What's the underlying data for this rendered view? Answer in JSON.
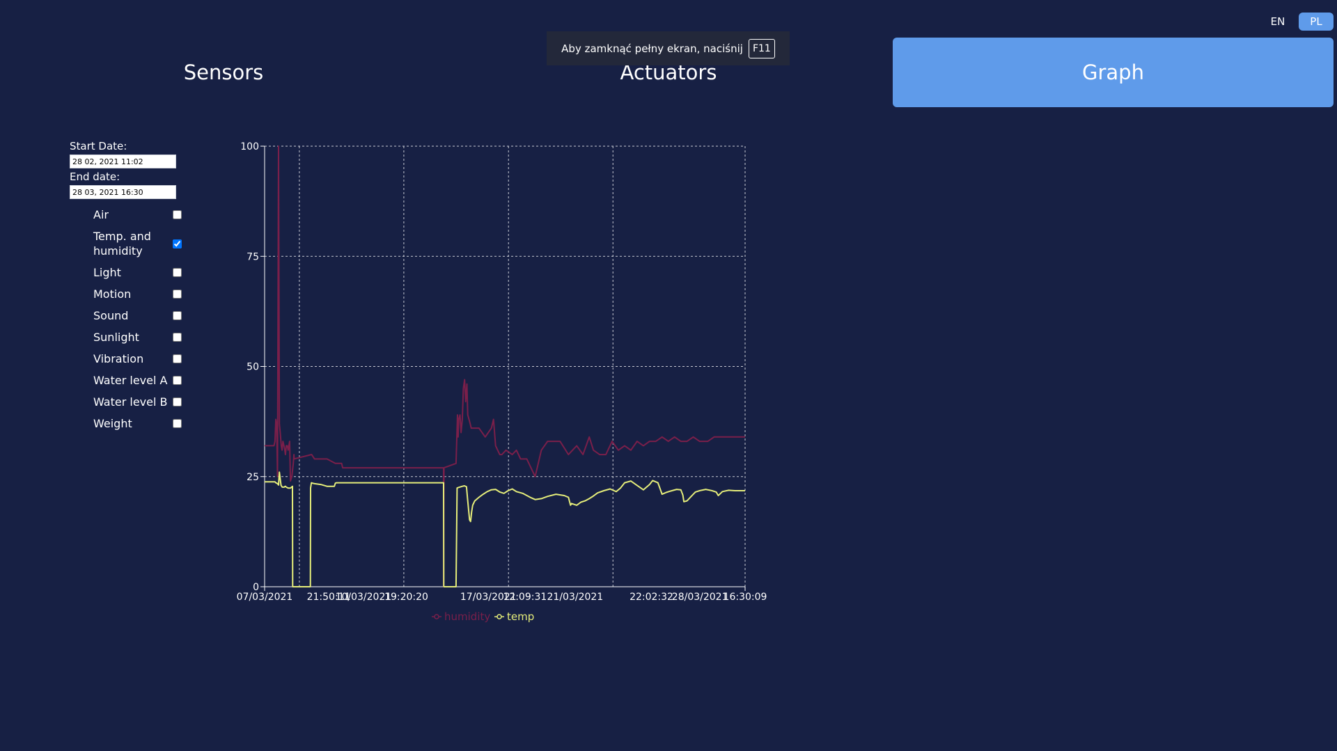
{
  "language": {
    "en_label": "EN",
    "pl_label": "PL",
    "selected": "PL"
  },
  "nav": {
    "sensors": "Sensors",
    "actuators": "Actuators",
    "graph": "Graph",
    "active": "Graph"
  },
  "fullscreen_notice": {
    "text": "Aby zamknąć pełny ekran, naciśnij",
    "key": "F11"
  },
  "filters": {
    "start_label": "Start Date:",
    "start_value": "28 02, 2021 11:02",
    "end_label": "End date:",
    "end_value": "28 03, 2021 16:30",
    "sensors": [
      {
        "label": "Air",
        "checked": false
      },
      {
        "label": "Temp. and humidity",
        "checked": true
      },
      {
        "label": "Light",
        "checked": false
      },
      {
        "label": "Motion",
        "checked": false
      },
      {
        "label": "Sound",
        "checked": false
      },
      {
        "label": "Sunlight",
        "checked": false
      },
      {
        "label": "Vibration",
        "checked": false
      },
      {
        "label": "Water level A",
        "checked": false
      },
      {
        "label": "Water level B",
        "checked": false
      },
      {
        "label": "Weight",
        "checked": false
      }
    ]
  },
  "chart_data": {
    "type": "line",
    "title": "",
    "xlabel": "",
    "ylabel": "",
    "ylim": [
      0,
      100
    ],
    "yticks": [
      0,
      25,
      50,
      75,
      100
    ],
    "x_range": [
      "07/03/2021",
      "28/03/2021 16:30:09"
    ],
    "xticks": [
      {
        "x": 0.0,
        "label": "07/03/2021"
      },
      {
        "x": 3.08,
        "label": "21:50:11"
      },
      {
        "x": 4.75,
        "label": "10/03/2021"
      },
      {
        "x": 6.81,
        "label": "19:20:20"
      },
      {
        "x": 10.75,
        "label": "17/03/2021"
      },
      {
        "x": 12.51,
        "label": "12:09:31"
      },
      {
        "x": 14.92,
        "label": "21/03/2021"
      },
      {
        "x": 18.59,
        "label": "22:02:32"
      },
      {
        "x": 20.92,
        "label": "28/03/2021"
      },
      {
        "x": 23.09,
        "label": "16:30:09"
      }
    ],
    "vgrid_x": [
      0.0,
      1.67,
      6.69,
      11.72,
      16.74,
      23.09
    ],
    "grid": true,
    "legend_position": "bottom",
    "series": [
      {
        "name": "humidity",
        "color": "#7a1f4a",
        "x": [
          0.0,
          0.45,
          0.5,
          0.54,
          0.58,
          0.62,
          0.67,
          0.71,
          0.75,
          0.8,
          0.84,
          0.88,
          0.93,
          0.97,
          1.0,
          1.04,
          1.09,
          1.13,
          1.2,
          1.24,
          1.31,
          1.38,
          1.41,
          1.42,
          2.25,
          2.26,
          2.4,
          2.7,
          3.0,
          3.4,
          3.6,
          3.7,
          3.75,
          5.0,
          6.5,
          8.6,
          8.6,
          8.62,
          9.2,
          9.27,
          9.3,
          9.33,
          9.39,
          9.44,
          9.5,
          9.55,
          9.61,
          9.66,
          9.72,
          9.76,
          9.82,
          9.88,
          9.93,
          9.99,
          10.1,
          10.3,
          10.6,
          10.9,
          11.0,
          11.1,
          11.2,
          11.3,
          11.4,
          11.6,
          11.9,
          12.1,
          12.3,
          12.6,
          12.8,
          13.0,
          13.3,
          13.6,
          13.9,
          14.2,
          14.6,
          15.0,
          15.3,
          15.6,
          15.8,
          16.1,
          16.4,
          16.7,
          17.0,
          17.3,
          17.6,
          17.9,
          18.2,
          18.5,
          18.8,
          19.1,
          19.4,
          19.7,
          20.0,
          20.3,
          20.6,
          20.9,
          21.3,
          21.6,
          22.0,
          22.4,
          22.7,
          23.09
        ],
        "y": [
          32,
          32,
          33,
          38,
          37,
          25,
          100,
          37,
          35,
          32,
          31,
          33,
          32,
          31,
          30,
          32,
          32,
          31,
          33,
          24,
          25,
          28,
          30,
          29,
          30,
          30,
          29,
          29,
          29,
          28,
          28,
          28,
          27,
          27,
          27,
          27,
          0,
          27,
          28,
          39,
          34,
          38,
          39,
          35,
          38,
          45,
          47,
          42,
          46,
          39,
          38,
          37,
          36,
          36,
          36,
          36,
          34,
          36,
          38,
          32,
          31,
          30,
          30,
          31,
          30,
          31,
          29,
          29,
          27,
          25,
          31,
          33,
          33,
          33,
          30,
          32,
          30,
          34,
          31,
          30,
          30,
          33,
          31,
          32,
          31,
          33,
          32,
          33,
          33,
          34,
          33,
          34,
          33,
          33,
          34,
          33,
          33,
          34,
          34,
          34,
          34,
          34
        ]
      },
      {
        "name": "temp",
        "color": "#e6ee7a",
        "x": [
          0.0,
          0.45,
          0.5,
          0.54,
          0.58,
          0.62,
          0.67,
          0.71,
          0.79,
          0.85,
          0.94,
          0.96,
          1.0,
          1.04,
          1.09,
          1.13,
          1.24,
          1.34,
          1.35,
          2.2,
          2.21,
          2.25,
          2.3,
          2.4,
          2.7,
          3.0,
          3.2,
          3.35,
          3.4,
          3.45,
          5.0,
          6.5,
          8.6,
          8.61,
          9.2,
          9.25,
          9.3,
          9.5,
          9.6,
          9.7,
          9.75,
          9.8,
          9.85,
          9.9,
          9.95,
          10.0,
          10.1,
          10.3,
          10.5,
          10.7,
          10.9,
          11.1,
          11.3,
          11.5,
          11.7,
          11.9,
          12.1,
          12.4,
          12.8,
          13.0,
          13.3,
          13.6,
          14.0,
          14.4,
          14.6,
          14.7,
          14.75,
          15.0,
          15.2,
          15.4,
          15.6,
          15.8,
          16.0,
          16.3,
          16.6,
          16.9,
          17.1,
          17.3,
          17.6,
          17.9,
          18.2,
          18.5,
          18.6,
          18.65,
          18.9,
          19.1,
          19.3,
          19.5,
          19.8,
          20.0,
          20.1,
          20.15,
          20.3,
          20.5,
          20.7,
          20.9,
          21.2,
          21.5,
          21.7,
          21.8,
          22.0,
          22.3,
          22.6,
          23.09
        ],
        "y": [
          23.8,
          23.8,
          23.8,
          23.6,
          23.5,
          23.4,
          23.1,
          26,
          23,
          22.6,
          22.6,
          22.7,
          22.8,
          22.6,
          22.5,
          22.4,
          22.4,
          22.8,
          0,
          0,
          22.4,
          23.6,
          23.5,
          23.4,
          23.2,
          22.8,
          22.8,
          22.8,
          23.5,
          23.6,
          23.6,
          23.6,
          23.6,
          0,
          0,
          22.4,
          22.5,
          22.8,
          22.9,
          22.7,
          20,
          17.5,
          15.2,
          14.8,
          17,
          18.5,
          19.5,
          20.3,
          21,
          21.6,
          22,
          22.1,
          21.5,
          21.2,
          21.8,
          22.2,
          21.6,
          21.2,
          20.2,
          19.8,
          20,
          20.5,
          21,
          20.7,
          20.3,
          18.5,
          18.9,
          18.5,
          19.2,
          19.5,
          20,
          20.6,
          21.3,
          21.8,
          22.2,
          21.6,
          22.4,
          23.6,
          24,
          23,
          22,
          23.2,
          23.8,
          24.1,
          23.6,
          21,
          21.4,
          21.7,
          22.1,
          22,
          20.8,
          19.3,
          19.5,
          20.5,
          21.5,
          21.8,
          22.1,
          21.8,
          21.5,
          20.7,
          21.6,
          21.9,
          21.8,
          21.8
        ]
      }
    ]
  }
}
